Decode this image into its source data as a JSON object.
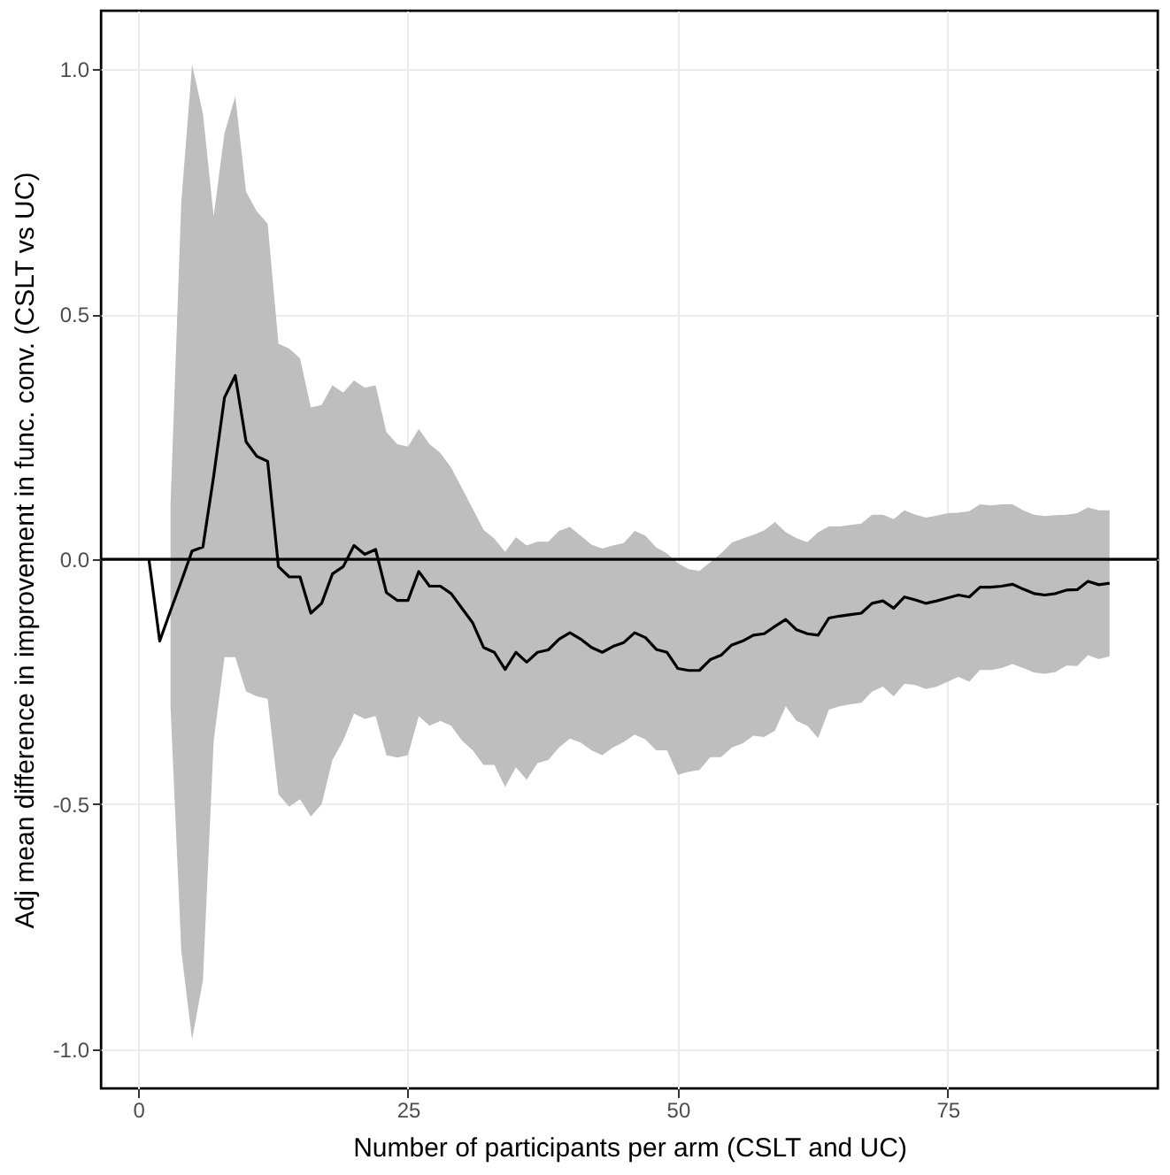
{
  "chart_data": {
    "type": "line",
    "xlabel": "Number of participants per arm (CSLT and UC)",
    "ylabel": "Adj mean difference in improvement in func. conv. (CSLT vs UC)",
    "x": [
      1,
      2,
      3,
      4,
      5,
      6,
      7,
      8,
      9,
      10,
      11,
      12,
      13,
      14,
      15,
      16,
      17,
      18,
      19,
      20,
      21,
      22,
      23,
      24,
      25,
      26,
      27,
      28,
      29,
      30,
      31,
      32,
      33,
      34,
      35,
      36,
      37,
      38,
      39,
      40,
      41,
      42,
      43,
      44,
      45,
      46,
      47,
      48,
      49,
      50,
      51,
      52,
      53,
      54,
      55,
      56,
      57,
      58,
      59,
      60,
      61,
      62,
      63,
      64,
      65,
      66,
      67,
      68,
      69,
      70,
      71,
      72,
      73,
      74,
      75,
      76,
      77,
      78,
      79,
      80,
      81,
      82,
      83,
      84,
      85,
      86,
      87,
      88,
      89,
      90
    ],
    "series": [
      {
        "color": "#000000",
        "values": [
          0,
          -0.167,
          -0.105,
          -0.045,
          0.017,
          0.025,
          0.17,
          0.33,
          0.375,
          0.24,
          0.21,
          0.2,
          -0.015,
          -0.036,
          -0.036,
          -0.11,
          -0.09,
          -0.03,
          -0.015,
          0.028,
          0.01,
          0.02,
          -0.068,
          -0.084,
          -0.084,
          -0.025,
          -0.055,
          -0.055,
          -0.07,
          -0.1,
          -0.13,
          -0.18,
          -0.19,
          -0.225,
          -0.19,
          -0.21,
          -0.19,
          -0.185,
          -0.163,
          -0.15,
          -0.163,
          -0.18,
          -0.19,
          -0.178,
          -0.17,
          -0.15,
          -0.16,
          -0.184,
          -0.19,
          -0.223,
          -0.227,
          -0.227,
          -0.205,
          -0.196,
          -0.175,
          -0.167,
          -0.155,
          -0.152,
          -0.137,
          -0.123,
          -0.144,
          -0.152,
          -0.155,
          -0.12,
          -0.116,
          -0.113,
          -0.11,
          -0.09,
          -0.085,
          -0.1,
          -0.077,
          -0.083,
          -0.09,
          -0.085,
          -0.079,
          -0.073,
          -0.077,
          -0.057,
          -0.057,
          -0.055,
          -0.051,
          -0.061,
          -0.07,
          -0.073,
          -0.07,
          -0.063,
          -0.062,
          -0.045,
          -0.052,
          -0.049
        ],
        "lower": [
          null,
          null,
          -0.3,
          -0.8,
          -0.98,
          -0.86,
          -0.37,
          -0.2,
          -0.2,
          -0.27,
          -0.28,
          -0.285,
          -0.48,
          -0.505,
          -0.49,
          -0.525,
          -0.5,
          -0.41,
          -0.37,
          -0.315,
          -0.326,
          -0.32,
          -0.4,
          -0.405,
          -0.4,
          -0.32,
          -0.34,
          -0.33,
          -0.34,
          -0.37,
          -0.39,
          -0.42,
          -0.42,
          -0.465,
          -0.425,
          -0.45,
          -0.416,
          -0.41,
          -0.384,
          -0.366,
          -0.374,
          -0.39,
          -0.4,
          -0.384,
          -0.373,
          -0.358,
          -0.368,
          -0.39,
          -0.39,
          -0.44,
          -0.434,
          -0.43,
          -0.404,
          -0.404,
          -0.384,
          -0.376,
          -0.36,
          -0.363,
          -0.35,
          -0.3,
          -0.33,
          -0.34,
          -0.365,
          -0.307,
          -0.3,
          -0.296,
          -0.293,
          -0.27,
          -0.26,
          -0.28,
          -0.254,
          -0.257,
          -0.265,
          -0.26,
          -0.25,
          -0.24,
          -0.25,
          -0.226,
          -0.226,
          -0.222,
          -0.214,
          -0.222,
          -0.231,
          -0.234,
          -0.23,
          -0.217,
          -0.218,
          -0.196,
          -0.204,
          -0.198
        ],
        "upper": [
          null,
          null,
          0.11,
          0.73,
          1.01,
          0.91,
          0.7,
          0.87,
          0.945,
          0.75,
          0.71,
          0.685,
          0.44,
          0.43,
          0.41,
          0.31,
          0.315,
          0.355,
          0.34,
          0.365,
          0.35,
          0.355,
          0.26,
          0.235,
          0.23,
          0.266,
          0.235,
          0.217,
          0.187,
          0.145,
          0.103,
          0.06,
          0.042,
          0.015,
          0.045,
          0.028,
          0.036,
          0.036,
          0.058,
          0.066,
          0.048,
          0.03,
          0.022,
          0.028,
          0.033,
          0.058,
          0.048,
          0.024,
          0.012,
          -0.008,
          -0.02,
          -0.024,
          -0.006,
          0.012,
          0.034,
          0.042,
          0.05,
          0.059,
          0.076,
          0.055,
          0.043,
          0.035,
          0.055,
          0.067,
          0.067,
          0.07,
          0.073,
          0.091,
          0.091,
          0.082,
          0.1,
          0.091,
          0.085,
          0.089,
          0.094,
          0.095,
          0.098,
          0.112,
          0.11,
          0.112,
          0.112,
          0.1,
          0.091,
          0.088,
          0.09,
          0.091,
          0.094,
          0.106,
          0.1,
          0.1
        ]
      }
    ],
    "xlim": [
      -3.45,
      94.45
    ],
    "ylim": [
      -1.08,
      1.12
    ],
    "xticks": [
      0,
      25,
      50,
      75
    ],
    "yticks": [
      {
        "value": -1,
        "label": "-1.0"
      },
      {
        "value": -0.5,
        "label": "-0.5"
      },
      {
        "value": 0,
        "label": "0.0"
      },
      {
        "value": 0.5,
        "label": "0.5"
      },
      {
        "value": 1,
        "label": "1.0"
      }
    ],
    "ref_lines": [
      {
        "axis": "y",
        "value": 0,
        "color": "#000000"
      }
    ],
    "grid": true
  }
}
